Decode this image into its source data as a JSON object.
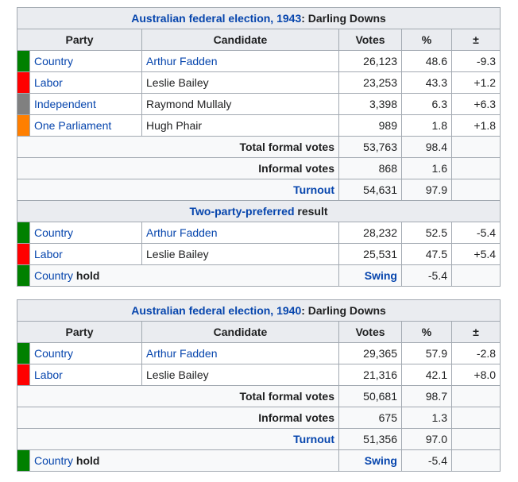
{
  "colors": {
    "Country": "#008000",
    "Labor": "#ff0000",
    "Independent": "#808080",
    "One Parliament": "#ff7f00",
    "link": "#0645ad",
    "header_bg": "#eaecf0",
    "border": "#a2a9b1"
  },
  "headers": {
    "party": "Party",
    "candidate": "Candidate",
    "votes": "Votes",
    "pct": "%",
    "swing": "±"
  },
  "tables": [
    {
      "caption_link": "Australian federal election, 1943",
      "caption_rest": ": Darling Downs",
      "rows": [
        {
          "party": "Country",
          "candidate": "Arthur Fadden",
          "votes": "26,123",
          "pct": "48.6",
          "swing": "-9.3"
        },
        {
          "party": "Labor",
          "candidate": "Leslie Bailey",
          "votes": "23,253",
          "pct": "43.3",
          "swing": "+1.2"
        },
        {
          "party": "Independent",
          "candidate": "Raymond Mullaly",
          "votes": "3,398",
          "pct": "6.3",
          "swing": "+6.3"
        },
        {
          "party": "One Parliament",
          "candidate": "Hugh Phair",
          "votes": "989",
          "pct": "1.8",
          "swing": "+1.8"
        }
      ],
      "total": {
        "label": "Total formal votes",
        "votes": "53,763",
        "pct": "98.4"
      },
      "informal": {
        "label": "Informal votes",
        "votes": "868",
        "pct": "1.6"
      },
      "turnout": {
        "label": "Turnout",
        "votes": "54,631",
        "pct": "97.9"
      },
      "tpp": {
        "link": "Two-party-preferred",
        "rest": " result",
        "rows": [
          {
            "party": "Country",
            "candidate": "Arthur Fadden",
            "votes": "28,232",
            "pct": "52.5",
            "swing": "-5.4"
          },
          {
            "party": "Labor",
            "candidate": "Leslie Bailey",
            "votes": "25,531",
            "pct": "47.5",
            "swing": "+5.4"
          }
        ]
      },
      "hold": {
        "party": "Country",
        "word": "hold",
        "swing_label": "Swing",
        "value": "-5.4"
      }
    },
    {
      "caption_link": "Australian federal election, 1940",
      "caption_rest": ": Darling Downs",
      "rows": [
        {
          "party": "Country",
          "candidate": "Arthur Fadden",
          "votes": "29,365",
          "pct": "57.9",
          "swing": "-2.8"
        },
        {
          "party": "Labor",
          "candidate": "Leslie Bailey",
          "votes": "21,316",
          "pct": "42.1",
          "swing": "+8.0"
        }
      ],
      "total": {
        "label": "Total formal votes",
        "votes": "50,681",
        "pct": "98.7"
      },
      "informal": {
        "label": "Informal votes",
        "votes": "675",
        "pct": "1.3"
      },
      "turnout": {
        "label": "Turnout",
        "votes": "51,356",
        "pct": "97.0"
      },
      "hold": {
        "party": "Country",
        "word": "hold",
        "swing_label": "Swing",
        "value": "-5.4"
      }
    }
  ]
}
